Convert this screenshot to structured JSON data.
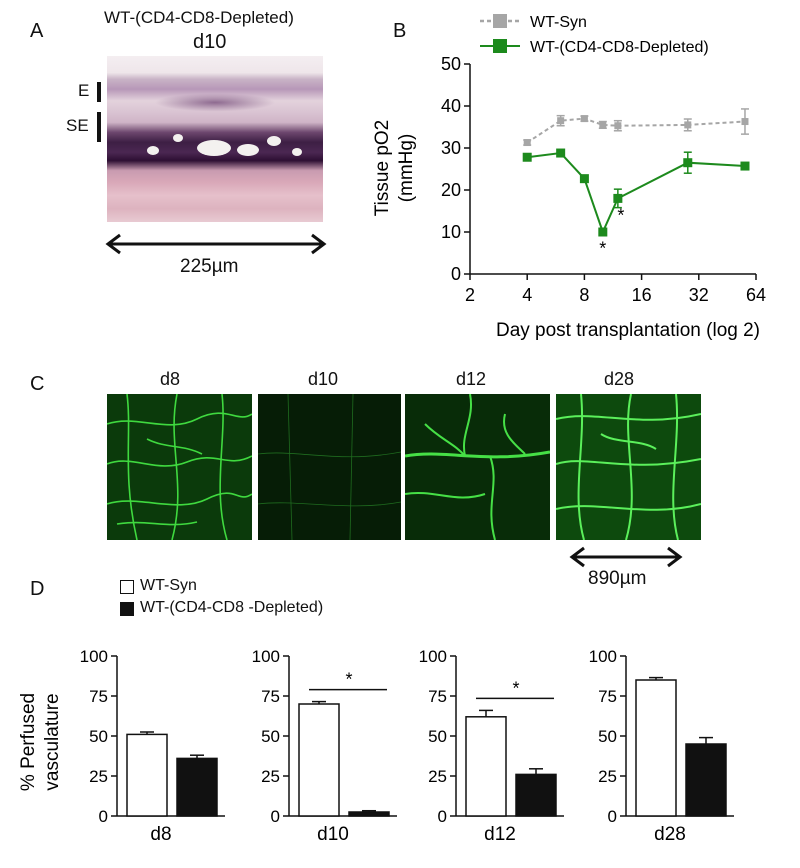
{
  "panel_a": {
    "letter": "A",
    "title": "WT-(CD4-CD8-Depleted)",
    "day": "d10",
    "layer_labels": [
      "E",
      "SE"
    ],
    "scale": "225µm"
  },
  "panel_b": {
    "letter": "B",
    "legend": [
      "WT-Syn",
      "WT-(CD4-CD8-Depleted)"
    ],
    "ylabel_line1": "Tissue pO2",
    "ylabel_line2": "(mmHg)",
    "xlabel": "Day post transplantation (log 2)",
    "star": "*"
  },
  "panel_c": {
    "letter": "C",
    "days": [
      "d8",
      "d10",
      "d12",
      "d28"
    ],
    "scale": "890µm"
  },
  "panel_d": {
    "letter": "D",
    "legend": [
      "WT-Syn",
      "WT-(CD4-CD8 -Depleted)"
    ],
    "ylabel_line1": "% Perfused",
    "ylabel_line2": "vasculature",
    "star": "*"
  },
  "chart_data": [
    {
      "type": "line",
      "panel": "B",
      "x": [
        4,
        6,
        8,
        10,
        12,
        28,
        56
      ],
      "xscale": "log2",
      "xlim": [
        2,
        64
      ],
      "xticks": [
        2,
        4,
        8,
        16,
        32,
        64
      ],
      "ylim": [
        0,
        50
      ],
      "yticks": [
        0,
        10,
        20,
        30,
        40,
        50
      ],
      "xlabel": "Day post transplantation (log 2)",
      "ylabel": "Tissue pO2 (mmHg)",
      "legend_position": "top",
      "series": [
        {
          "name": "WT-Syn",
          "color": "#a6a6a6",
          "style": "dashed",
          "values": [
            31.3,
            36.5,
            37,
            35.5,
            35.3,
            35.5,
            36.3
          ],
          "errors": [
            0.6,
            1.2,
            0.6,
            0.8,
            1.2,
            1.4,
            3.0
          ]
        },
        {
          "name": "WT-(CD4-CD8-Depleted)",
          "color": "#1d8a1d",
          "style": "solid",
          "values": [
            27.8,
            28.8,
            22.7,
            10,
            18,
            26.5,
            25.7
          ],
          "errors": [
            0.6,
            0.8,
            0.8,
            0.6,
            2.2,
            2.5,
            0.6
          ]
        }
      ],
      "significance": [
        {
          "x": 10,
          "label": "*"
        },
        {
          "x": 12,
          "label": "*"
        }
      ]
    },
    {
      "type": "bar",
      "panel": "D",
      "category": "d8",
      "ylim": [
        0,
        100
      ],
      "yticks": [
        0,
        25,
        50,
        75,
        100
      ],
      "series": [
        {
          "name": "WT-Syn",
          "values": [
            51
          ],
          "errors": [
            1.5
          ]
        },
        {
          "name": "WT-(CD4-CD8 -Depleted)",
          "values": [
            36
          ],
          "errors": [
            2
          ]
        }
      ],
      "significant": false
    },
    {
      "type": "bar",
      "panel": "D",
      "category": "d10",
      "ylim": [
        0,
        100
      ],
      "yticks": [
        0,
        25,
        50,
        75,
        100
      ],
      "series": [
        {
          "name": "WT-Syn",
          "values": [
            70
          ],
          "errors": [
            1.5
          ]
        },
        {
          "name": "WT-(CD4-CD8 -Depleted)",
          "values": [
            2.5
          ],
          "errors": [
            0.8
          ]
        }
      ],
      "significant": true
    },
    {
      "type": "bar",
      "panel": "D",
      "category": "d12",
      "ylim": [
        0,
        100
      ],
      "yticks": [
        0,
        25,
        50,
        75,
        100
      ],
      "series": [
        {
          "name": "WT-Syn",
          "values": [
            62
          ],
          "errors": [
            4
          ]
        },
        {
          "name": "WT-(CD4-CD8 -Depleted)",
          "values": [
            26
          ],
          "errors": [
            3.5
          ]
        }
      ],
      "significant": true
    },
    {
      "type": "bar",
      "panel": "D",
      "category": "d28",
      "ylim": [
        0,
        100
      ],
      "yticks": [
        0,
        25,
        50,
        75,
        100
      ],
      "series": [
        {
          "name": "WT-Syn",
          "values": [
            85
          ],
          "errors": [
            1.5
          ]
        },
        {
          "name": "WT-(CD4-CD8 -Depleted)",
          "values": [
            45
          ],
          "errors": [
            4
          ]
        }
      ],
      "significant": false
    }
  ]
}
